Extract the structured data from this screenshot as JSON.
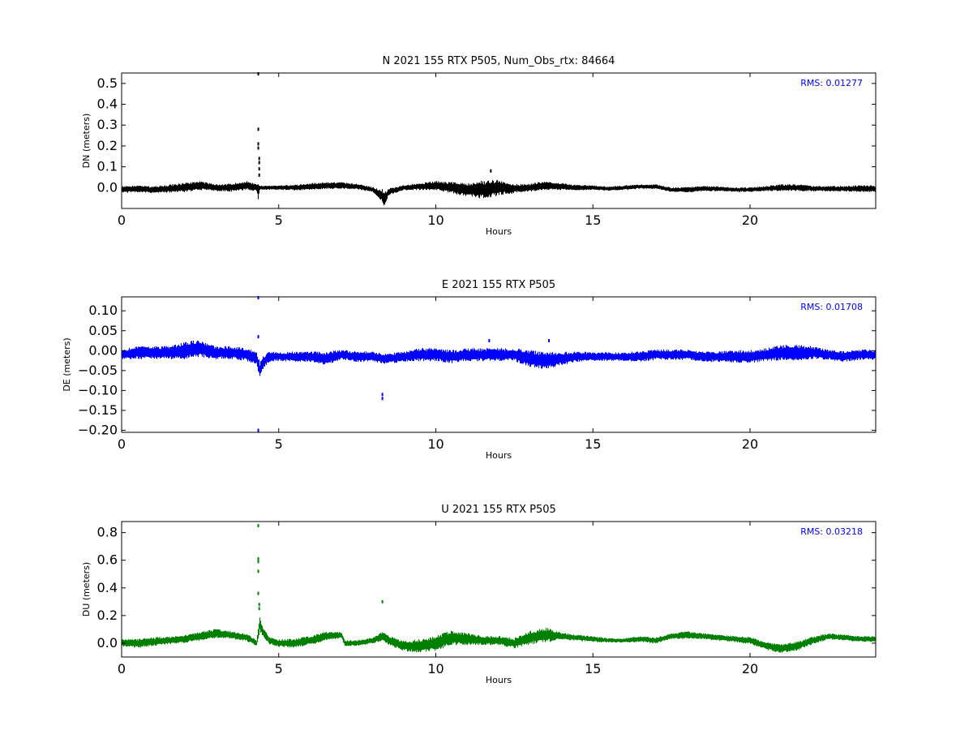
{
  "chart_data": [
    {
      "type": "scatter",
      "title": "N 2021 155 RTX  P505, Num_Obs_rtx: 84664",
      "xlabel": "Hours",
      "ylabel": "DN (meters)",
      "xlim": [
        0,
        24
      ],
      "ylim": [
        -0.1,
        0.55
      ],
      "xticks": [
        0,
        5,
        10,
        15,
        20
      ],
      "xtick_labels": [
        "0",
        "5",
        "10",
        "15",
        "20"
      ],
      "yticks": [
        0.0,
        0.1,
        0.2,
        0.3,
        0.4,
        0.5
      ],
      "ytick_labels": [
        "0.0",
        "0.1",
        "0.2",
        "0.3",
        "0.4",
        "0.5"
      ],
      "grid": false,
      "color": "#000000",
      "annotation": "RMS:  0.01277",
      "annotation_color": "#0000ff",
      "series": [
        {
          "x": [
            0.0,
            0.5,
            1.0,
            1.5,
            2.0,
            2.5,
            3.0,
            3.5,
            4.0,
            4.3,
            4.35,
            4.4,
            4.6,
            5.0,
            5.5,
            6.0,
            6.5,
            7.0,
            7.5,
            8.0,
            8.3,
            8.35,
            8.5,
            9.0,
            9.5,
            10.0,
            10.5,
            11.0,
            11.5,
            12.0,
            12.5,
            13.0,
            13.5,
            14.0,
            14.5,
            15.0,
            15.5,
            16.0,
            16.5,
            17.0,
            17.5,
            18.0,
            18.5,
            19.0,
            19.5,
            20.0,
            20.5,
            21.0,
            21.5,
            22.0,
            22.5,
            23.0,
            23.5,
            24.0
          ],
          "y": [
            -0.01,
            -0.005,
            -0.01,
            -0.005,
            0.0,
            0.01,
            0.0,
            0.0,
            0.01,
            0.0,
            -0.02,
            0.0,
            0.0,
            0.0,
            0.0,
            0.005,
            0.01,
            0.01,
            0.005,
            -0.01,
            -0.04,
            -0.06,
            -0.02,
            0.0,
            0.005,
            0.01,
            0.0,
            -0.01,
            -0.01,
            0.0,
            -0.005,
            0.0,
            0.01,
            0.005,
            0.0,
            0.0,
            -0.005,
            0.0,
            0.005,
            0.005,
            -0.01,
            -0.01,
            -0.005,
            -0.005,
            -0.01,
            -0.01,
            -0.005,
            0.0,
            0.0,
            -0.005,
            -0.005,
            -0.005,
            -0.005,
            -0.005
          ],
          "spread": [
            0.015,
            0.015,
            0.015,
            0.018,
            0.02,
            0.02,
            0.015,
            0.018,
            0.02,
            0.015,
            0.04,
            0.01,
            0.01,
            0.01,
            0.012,
            0.015,
            0.015,
            0.015,
            0.012,
            0.012,
            0.03,
            0.035,
            0.015,
            0.012,
            0.015,
            0.02,
            0.025,
            0.03,
            0.04,
            0.035,
            0.02,
            0.018,
            0.02,
            0.015,
            0.012,
            0.01,
            0.01,
            0.01,
            0.01,
            0.01,
            0.01,
            0.012,
            0.012,
            0.01,
            0.01,
            0.01,
            0.012,
            0.015,
            0.015,
            0.012,
            0.012,
            0.012,
            0.015,
            0.015
          ]
        }
      ],
      "outliers": {
        "x": [
          4.35,
          4.35,
          4.35,
          4.35,
          4.38,
          4.38,
          4.38,
          4.38,
          11.75
        ],
        "y": [
          0.55,
          0.28,
          0.21,
          0.19,
          0.14,
          0.12,
          0.09,
          0.06,
          0.08
        ]
      }
    },
    {
      "type": "scatter",
      "title": "E 2021 155 RTX  P505",
      "xlabel": "Hours",
      "ylabel": "DE (meters)",
      "xlim": [
        0,
        24
      ],
      "ylim": [
        -0.205,
        0.135
      ],
      "xticks": [
        0,
        5,
        10,
        15,
        20
      ],
      "xtick_labels": [
        "0",
        "5",
        "10",
        "15",
        "20"
      ],
      "yticks": [
        -0.2,
        -0.15,
        -0.1,
        -0.05,
        0.0,
        0.05,
        0.1
      ],
      "ytick_labels": [
        "−0.20",
        "−0.15",
        "−0.10",
        "−0.05",
        "0.00",
        "0.05",
        "0.10"
      ],
      "grid": false,
      "color": "#0000ff",
      "annotation": "RMS:  0.01708",
      "annotation_color": "#0000ff",
      "series": [
        {
          "x": [
            0.0,
            0.5,
            1.0,
            1.5,
            2.0,
            2.3,
            2.5,
            3.0,
            3.5,
            4.0,
            4.3,
            4.4,
            4.5,
            4.7,
            5.0,
            5.5,
            6.0,
            6.5,
            7.0,
            7.5,
            8.0,
            8.3,
            8.5,
            9.0,
            9.5,
            10.0,
            10.5,
            11.0,
            11.5,
            12.0,
            12.5,
            13.0,
            13.5,
            14.0,
            14.5,
            15.0,
            15.5,
            16.0,
            16.5,
            17.0,
            17.5,
            18.0,
            18.5,
            19.0,
            19.5,
            20.0,
            20.5,
            21.0,
            21.5,
            22.0,
            22.5,
            23.0,
            23.5,
            24.0
          ],
          "y": [
            -0.01,
            -0.005,
            -0.005,
            -0.005,
            0.0,
            0.005,
            0.005,
            -0.005,
            -0.005,
            -0.01,
            -0.02,
            -0.05,
            -0.03,
            -0.015,
            -0.015,
            -0.015,
            -0.015,
            -0.02,
            -0.01,
            -0.015,
            -0.015,
            -0.02,
            -0.02,
            -0.015,
            -0.01,
            -0.01,
            -0.015,
            -0.01,
            -0.01,
            -0.01,
            -0.01,
            -0.02,
            -0.025,
            -0.02,
            -0.015,
            -0.015,
            -0.015,
            -0.015,
            -0.015,
            -0.01,
            -0.01,
            -0.01,
            -0.015,
            -0.015,
            -0.015,
            -0.015,
            -0.01,
            -0.005,
            -0.005,
            -0.005,
            -0.01,
            -0.015,
            -0.01,
            -0.01
          ],
          "spread": [
            0.012,
            0.015,
            0.015,
            0.015,
            0.02,
            0.02,
            0.02,
            0.015,
            0.015,
            0.015,
            0.015,
            0.02,
            0.015,
            0.012,
            0.01,
            0.012,
            0.012,
            0.015,
            0.012,
            0.012,
            0.012,
            0.012,
            0.012,
            0.012,
            0.015,
            0.015,
            0.015,
            0.015,
            0.015,
            0.015,
            0.015,
            0.02,
            0.02,
            0.015,
            0.012,
            0.01,
            0.01,
            0.01,
            0.012,
            0.012,
            0.012,
            0.012,
            0.012,
            0.012,
            0.015,
            0.015,
            0.015,
            0.018,
            0.018,
            0.015,
            0.012,
            0.012,
            0.012,
            0.012
          ]
        }
      ],
      "outliers": {
        "x": [
          4.35,
          4.35,
          4.35,
          8.3,
          8.3,
          13.6,
          11.7
        ],
        "y": [
          0.135,
          0.035,
          -0.2,
          -0.11,
          -0.12,
          0.025,
          0.025
        ]
      }
    },
    {
      "type": "scatter",
      "title": "U 2021 155 RTX  P505",
      "xlabel": "Hours",
      "ylabel": "DU (meters)",
      "xlim": [
        0,
        24
      ],
      "ylim": [
        -0.1,
        0.88
      ],
      "xticks": [
        0,
        5,
        10,
        15,
        20
      ],
      "xtick_labels": [
        "0",
        "5",
        "10",
        "15",
        "20"
      ],
      "yticks": [
        0.0,
        0.2,
        0.4,
        0.6,
        0.8
      ],
      "ytick_labels": [
        "0.0",
        "0.2",
        "0.4",
        "0.6",
        "0.8"
      ],
      "grid": false,
      "color": "#008000",
      "annotation": "RMS:  0.03218",
      "annotation_color": "#0000ff",
      "series": [
        {
          "x": [
            0.0,
            0.5,
            1.0,
            1.5,
            2.0,
            2.5,
            3.0,
            3.5,
            4.0,
            4.3,
            4.4,
            4.5,
            4.7,
            5.0,
            5.5,
            6.0,
            6.5,
            7.0,
            7.1,
            7.5,
            8.0,
            8.3,
            8.5,
            9.0,
            9.5,
            10.0,
            10.5,
            11.0,
            11.5,
            12.0,
            12.5,
            13.0,
            13.5,
            14.0,
            14.5,
            15.0,
            15.5,
            16.0,
            16.5,
            17.0,
            17.5,
            18.0,
            18.5,
            19.0,
            19.5,
            20.0,
            20.5,
            21.0,
            21.5,
            22.0,
            22.5,
            23.0,
            23.5,
            24.0
          ],
          "y": [
            0.0,
            0.0,
            0.01,
            0.02,
            0.03,
            0.05,
            0.07,
            0.06,
            0.04,
            0.0,
            0.14,
            0.08,
            0.02,
            0.0,
            0.0,
            0.02,
            0.05,
            0.06,
            0.0,
            0.0,
            0.02,
            0.05,
            0.02,
            -0.02,
            -0.02,
            0.0,
            0.04,
            0.03,
            0.02,
            0.02,
            0.0,
            0.04,
            0.06,
            0.05,
            0.04,
            0.03,
            0.02,
            0.02,
            0.03,
            0.02,
            0.05,
            0.06,
            0.05,
            0.04,
            0.03,
            0.02,
            -0.02,
            -0.04,
            -0.02,
            0.02,
            0.05,
            0.04,
            0.03,
            0.03
          ],
          "spread": [
            0.025,
            0.03,
            0.03,
            0.025,
            0.025,
            0.03,
            0.03,
            0.025,
            0.025,
            0.02,
            0.05,
            0.03,
            0.025,
            0.025,
            0.03,
            0.03,
            0.03,
            0.02,
            0.02,
            0.02,
            0.02,
            0.03,
            0.03,
            0.035,
            0.045,
            0.05,
            0.05,
            0.04,
            0.03,
            0.03,
            0.035,
            0.045,
            0.05,
            0.025,
            0.02,
            0.02,
            0.015,
            0.015,
            0.02,
            0.02,
            0.02,
            0.025,
            0.02,
            0.02,
            0.02,
            0.025,
            0.025,
            0.03,
            0.03,
            0.025,
            0.02,
            0.02,
            0.02,
            0.02
          ]
        }
      ],
      "outliers": {
        "x": [
          4.35,
          4.35,
          4.35,
          4.35,
          4.35,
          4.38,
          4.38,
          8.3
        ],
        "y": [
          0.85,
          0.61,
          0.59,
          0.52,
          0.36,
          0.28,
          0.25,
          0.3
        ]
      }
    }
  ]
}
